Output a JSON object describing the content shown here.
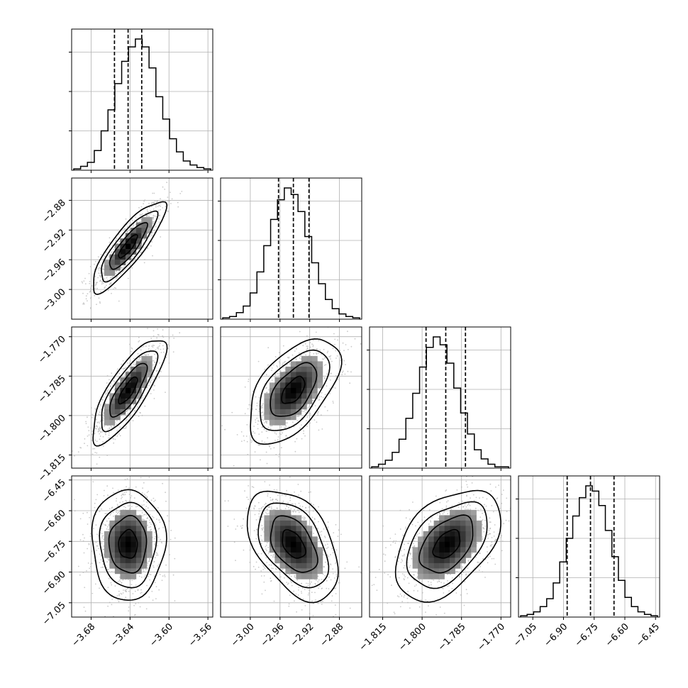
{
  "chart_data": {
    "type": "corner",
    "title": "",
    "grid": true,
    "colors": {
      "hist": "#000000",
      "grid": "#b0b0b0",
      "frame": "#000000",
      "scatter": "#b3b3b3"
    },
    "params": [
      {
        "range": [
          -3.7,
          -3.555
        ],
        "ticks": [
          -3.68,
          -3.64,
          -3.6,
          -3.56
        ],
        "tick_labels": [
          "−3.68",
          "−3.64",
          "−3.60",
          "−3.56"
        ],
        "quantiles": [
          -3.656,
          -3.642,
          -3.628
        ]
      },
      {
        "range": [
          -3.04,
          -2.85
        ],
        "ticks": [
          -3.0,
          -2.96,
          -2.92,
          -2.88
        ],
        "tick_labels": [
          "−3.00",
          "−2.96",
          "−2.92",
          "−2.88"
        ],
        "quantiles": [
          -2.962,
          -2.942,
          -2.921
        ]
      },
      {
        "range": [
          -1.82,
          -1.7663
        ],
        "ticks": [
          -1.815,
          -1.8,
          -1.785,
          -1.77
        ],
        "tick_labels": [
          "−1.815",
          "−1.800",
          "−1.785",
          "−1.770"
        ],
        "quantiles": [
          -1.7985,
          -1.791,
          -1.7835
        ]
      },
      {
        "range": [
          -7.12,
          -6.43
        ],
        "ticks": [
          -7.05,
          -6.9,
          -6.75,
          -6.6,
          -6.45
        ],
        "tick_labels": [
          "−7.05",
          "−6.90",
          "−6.75",
          "−6.60",
          "−6.45"
        ],
        "quantiles": [
          -6.882,
          -6.768,
          -6.653
        ]
      }
    ],
    "y_ticks": [
      null,
      {
        "values": [
          -2.88,
          -2.92,
          -2.96,
          -3.0
        ],
        "labels": [
          "−2.88",
          "−2.92",
          "−2.96",
          "−3.00"
        ]
      },
      {
        "values": [
          -1.77,
          -1.785,
          -1.8,
          -1.815
        ],
        "labels": [
          "−1.770",
          "−1.785",
          "−1.800",
          "−1.815"
        ]
      },
      {
        "values": [
          -6.45,
          -6.6,
          -6.75,
          -6.9,
          -7.05
        ],
        "labels": [
          "−6.45",
          "−6.60",
          "−6.75",
          "−6.90",
          "−7.05"
        ]
      }
    ],
    "histograms": [
      {
        "counts": [
          0.01,
          0.03,
          0.06,
          0.15,
          0.3,
          0.46,
          0.66,
          0.83,
          0.94,
          1.0,
          0.94,
          0.78,
          0.56,
          0.39,
          0.24,
          0.14,
          0.07,
          0.04,
          0.02,
          0.01
        ]
      },
      {
        "counts": [
          0.01,
          0.02,
          0.05,
          0.1,
          0.2,
          0.36,
          0.56,
          0.76,
          0.91,
          1.0,
          0.95,
          0.82,
          0.63,
          0.43,
          0.27,
          0.15,
          0.08,
          0.04,
          0.02,
          0.01
        ]
      },
      {
        "counts": [
          0.01,
          0.03,
          0.06,
          0.12,
          0.22,
          0.38,
          0.57,
          0.77,
          0.92,
          1.0,
          0.94,
          0.8,
          0.61,
          0.42,
          0.26,
          0.14,
          0.07,
          0.03,
          0.01,
          0.01
        ]
      },
      {
        "counts": [
          0.01,
          0.02,
          0.04,
          0.08,
          0.14,
          0.26,
          0.42,
          0.6,
          0.77,
          0.91,
          1.0,
          0.96,
          0.85,
          0.66,
          0.46,
          0.28,
          0.15,
          0.08,
          0.04,
          0.02,
          0.01
        ]
      }
    ],
    "pairs": [
      {
        "x": 0,
        "y": 1,
        "mean": [
          -3.642,
          -2.942
        ],
        "sd": [
          0.016,
          0.026
        ],
        "corr": 0.85
      },
      {
        "x": 0,
        "y": 2,
        "mean": [
          -3.642,
          -1.7905
        ],
        "sd": [
          0.016,
          0.0085
        ],
        "corr": 0.8
      },
      {
        "x": 1,
        "y": 2,
        "mean": [
          -2.942,
          -1.7905
        ],
        "sd": [
          0.026,
          0.0085
        ],
        "corr": 0.55
      },
      {
        "x": 0,
        "y": 3,
        "mean": [
          -3.642,
          -6.765
        ],
        "sd": [
          0.016,
          0.115
        ],
        "corr": 0.0
      },
      {
        "x": 1,
        "y": 3,
        "mean": [
          -2.942,
          -6.765
        ],
        "sd": [
          0.026,
          0.115
        ],
        "corr": -0.45
      },
      {
        "x": 2,
        "y": 3,
        "mean": [
          -1.7905,
          -6.765
        ],
        "sd": [
          0.0085,
          0.115
        ],
        "corr": 0.45
      }
    ],
    "contour_levels_sigma": [
      0.5,
      1.0,
      1.5,
      2.0
    ]
  }
}
